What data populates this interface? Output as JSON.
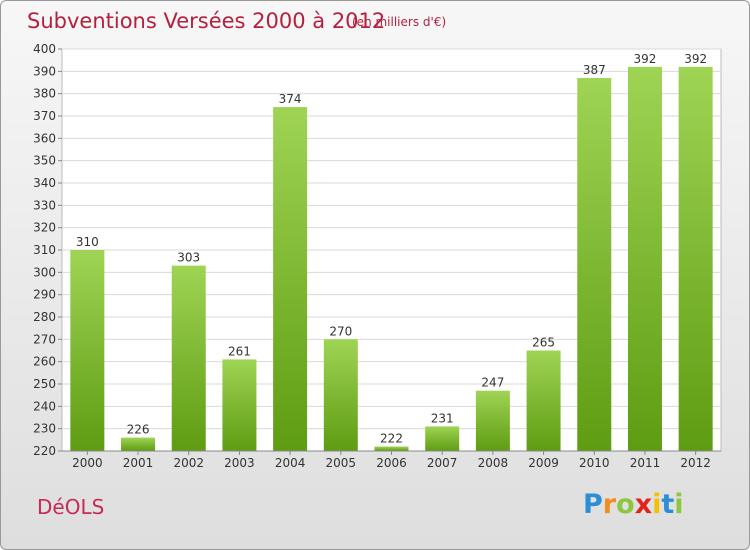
{
  "title": "Subventions Versées 2000 à 2012",
  "subtitle": "(en milliers d'€)",
  "commune": "DéOLS",
  "logo": {
    "letters": [
      "P",
      "r",
      "o",
      "x",
      "i",
      "t",
      "i"
    ],
    "colors": [
      "#2c8fd6",
      "#f28c1c",
      "#8dc63f",
      "#e2231a",
      "#f2c100",
      "#2c8fd6",
      "#8dc63f"
    ]
  },
  "colors": {
    "bar_top": "#9fd454",
    "bar_bottom": "#5e9c12",
    "text": "#b5203f"
  },
  "chart_data": {
    "type": "bar",
    "title": "Subventions Versées 2000 à 2012",
    "subtitle": "(en milliers d'€)",
    "categories": [
      "2000",
      "2001",
      "2002",
      "2003",
      "2004",
      "2005",
      "2006",
      "2007",
      "2008",
      "2009",
      "2010",
      "2011",
      "2012"
    ],
    "values": [
      310,
      226,
      303,
      261,
      374,
      270,
      222,
      231,
      247,
      265,
      387,
      392,
      392
    ],
    "ylim": [
      220,
      400
    ],
    "yticks": [
      220,
      230,
      240,
      250,
      260,
      270,
      280,
      290,
      300,
      310,
      320,
      330,
      340,
      350,
      360,
      370,
      380,
      390,
      400
    ],
    "grid": true,
    "xlabel": "",
    "ylabel": ""
  }
}
